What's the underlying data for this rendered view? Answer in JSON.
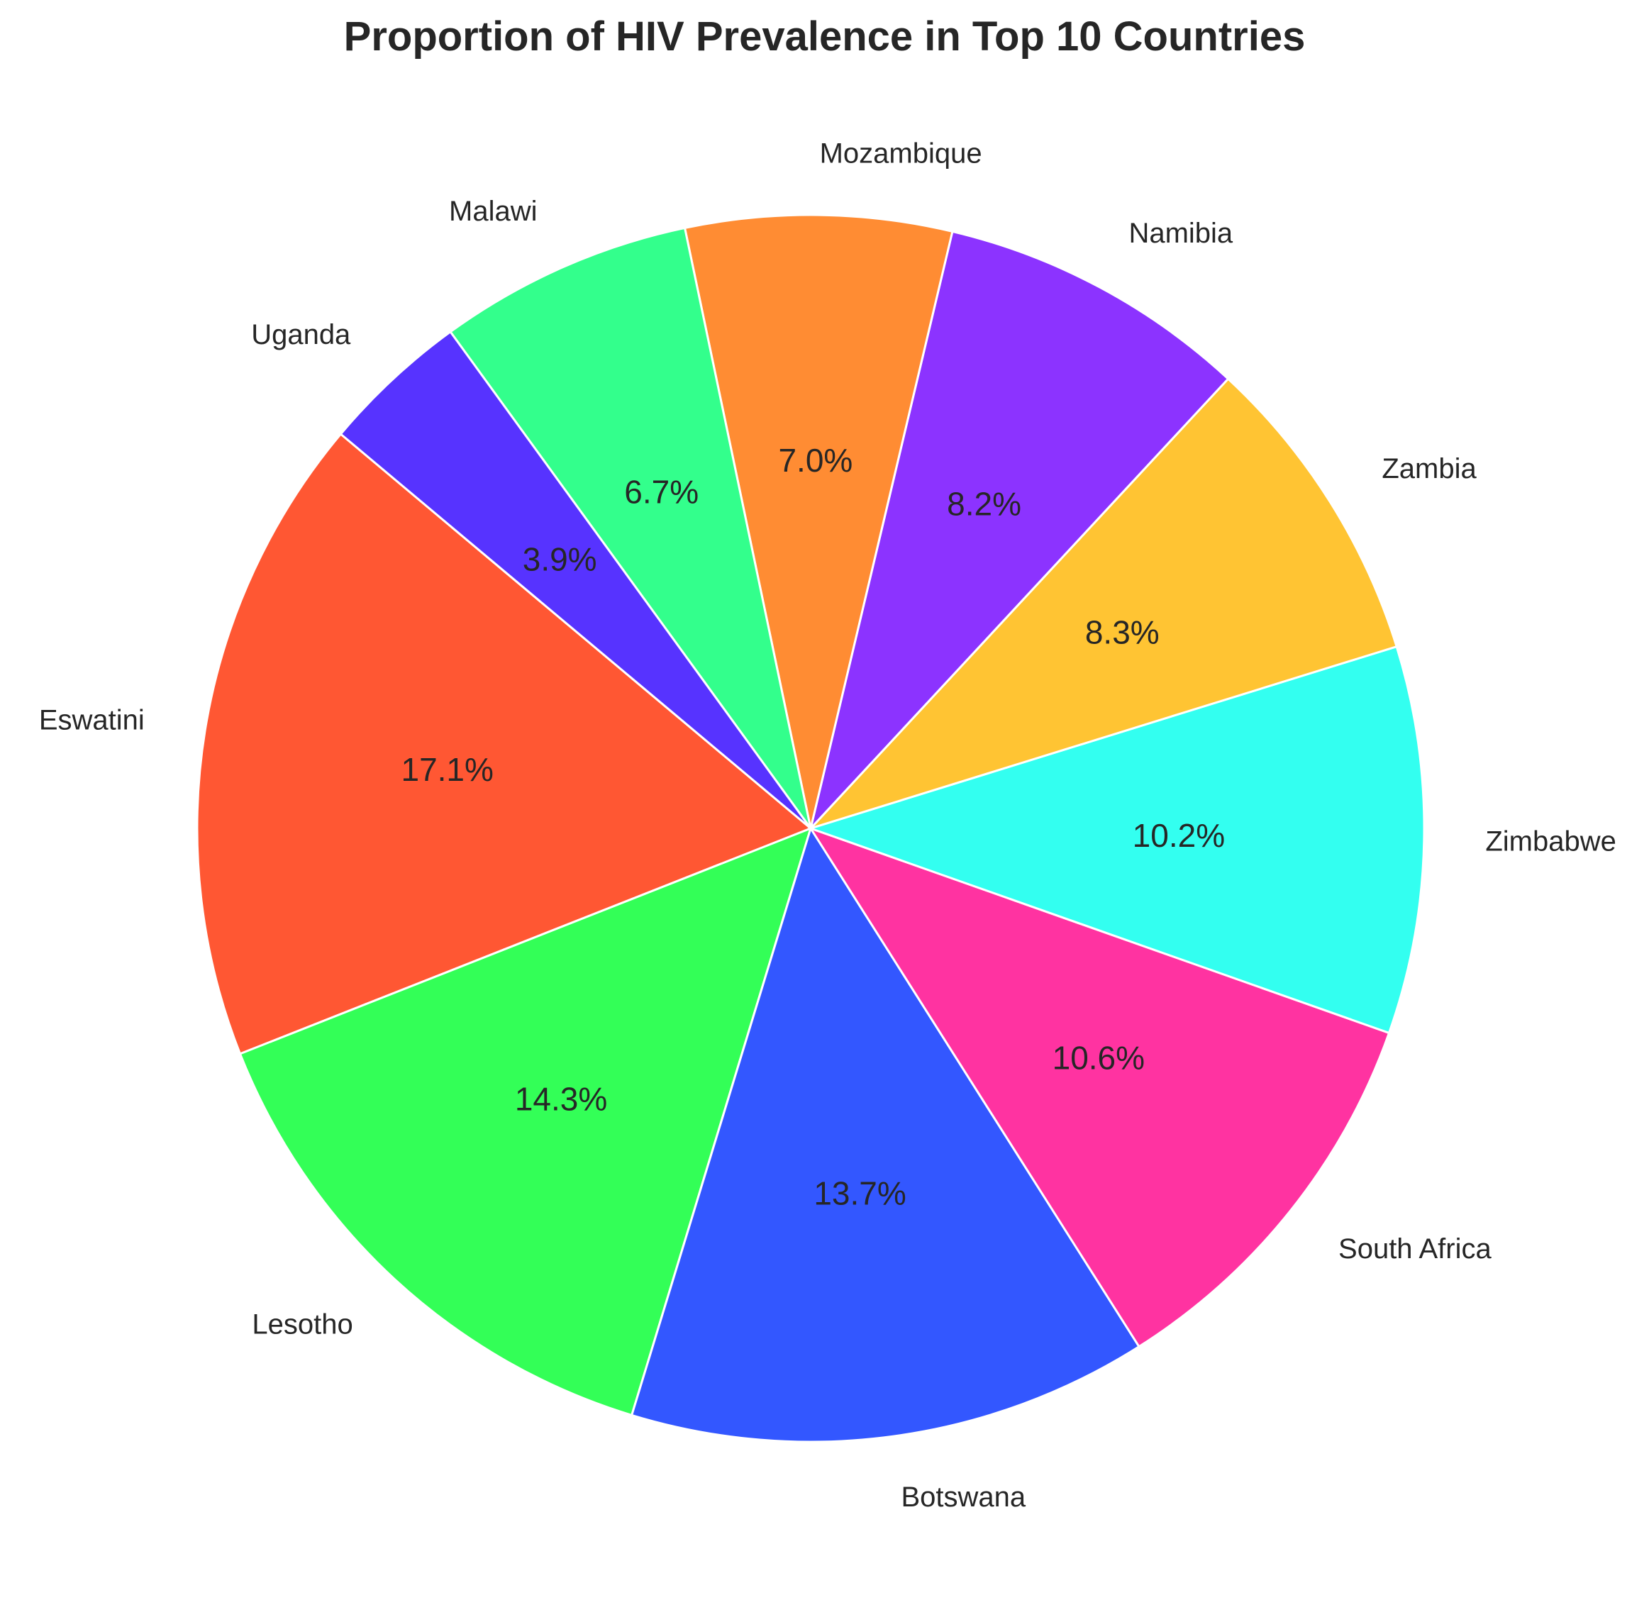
{
  "chart_data": {
    "type": "pie",
    "title": "Proportion of HIV Prevalence in Top 10 Countries",
    "categories": [
      "Eswatini",
      "Lesotho",
      "Botswana",
      "South Africa",
      "Zimbabwe",
      "Zambia",
      "Namibia",
      "Mozambique",
      "Malawi",
      "Uganda"
    ],
    "values": [
      17.1,
      14.3,
      13.7,
      10.6,
      10.2,
      8.3,
      8.2,
      7.0,
      6.7,
      3.9
    ],
    "value_labels": [
      "17.1%",
      "14.3%",
      "13.7%",
      "10.6%",
      "10.2%",
      "8.3%",
      "8.2%",
      "7.0%",
      "6.7%",
      "3.9%"
    ],
    "colors": [
      "#ff5733",
      "#33ff57",
      "#3357ff",
      "#ff33a1",
      "#33fff0",
      "#ffc433",
      "#8c33ff",
      "#ff8c33",
      "#33ff8c",
      "#5733ff"
    ],
    "legend": "none",
    "wedge_edge_color": "#ffffff"
  }
}
